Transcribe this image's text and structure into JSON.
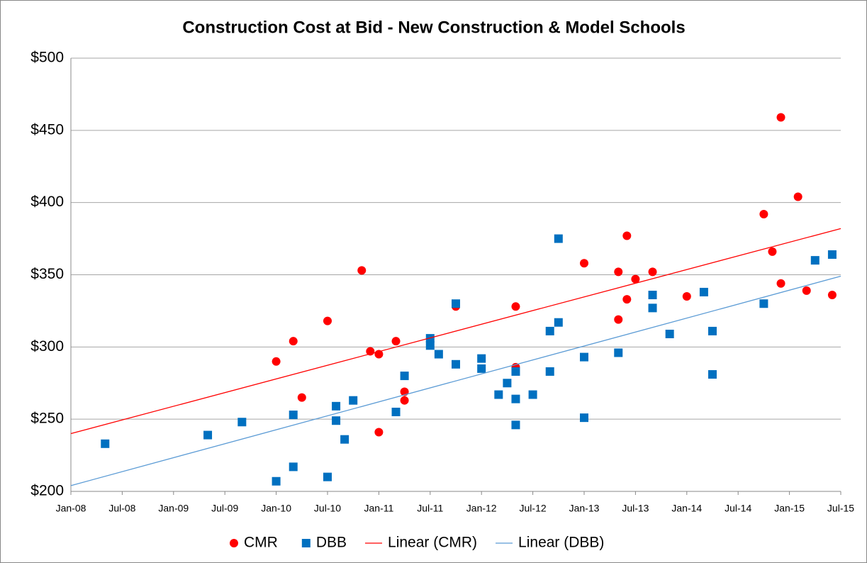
{
  "chart_data": {
    "type": "scatter",
    "title": "Construction Cost at Bid - New Construction & Model Schools",
    "xlim": [
      "2008-01",
      "2015-07"
    ],
    "xticks": [
      {
        "value": "2008-01",
        "label": "Jan-08"
      },
      {
        "value": "2008-07",
        "label": "Jul-08"
      },
      {
        "value": "2009-01",
        "label": "Jan-09"
      },
      {
        "value": "2009-07",
        "label": "Jul-09"
      },
      {
        "value": "2010-01",
        "label": "Jan-10"
      },
      {
        "value": "2010-07",
        "label": "Jul-10"
      },
      {
        "value": "2011-01",
        "label": "Jan-11"
      },
      {
        "value": "2011-07",
        "label": "Jul-11"
      },
      {
        "value": "2012-01",
        "label": "Jan-12"
      },
      {
        "value": "2012-07",
        "label": "Jul-12"
      },
      {
        "value": "2013-01",
        "label": "Jan-13"
      },
      {
        "value": "2013-07",
        "label": "Jul-13"
      },
      {
        "value": "2014-01",
        "label": "Jan-14"
      },
      {
        "value": "2014-07",
        "label": "Jul-14"
      },
      {
        "value": "2015-01",
        "label": "Jan-15"
      },
      {
        "value": "2015-07",
        "label": "Jul-15"
      }
    ],
    "ylim": [
      200,
      500
    ],
    "yticks": [
      {
        "value": 200,
        "label": "$200"
      },
      {
        "value": 250,
        "label": "$250"
      },
      {
        "value": 300,
        "label": "$300"
      },
      {
        "value": 350,
        "label": "$350"
      },
      {
        "value": 400,
        "label": "$400"
      },
      {
        "value": 450,
        "label": "$450"
      },
      {
        "value": 500,
        "label": "$500"
      }
    ],
    "grid": true,
    "legend": "bottom",
    "series": [
      {
        "name": "CMR",
        "color": "#ff0000",
        "mode": "circle",
        "x": [
          "2010-01",
          "2010-03",
          "2010-04",
          "2010-07",
          "2010-11",
          "2010-12",
          "2011-01",
          "2011-01",
          "2011-03",
          "2011-04",
          "2011-04",
          "2011-10",
          "2012-05",
          "2012-05",
          "2013-01",
          "2013-05",
          "2013-05",
          "2013-06",
          "2013-06",
          "2013-07",
          "2013-09",
          "2014-01",
          "2014-10",
          "2014-11",
          "2014-12",
          "2014-12",
          "2015-02",
          "2015-03",
          "2015-06"
        ],
        "values": [
          290,
          304,
          265,
          318,
          353,
          297,
          241,
          295,
          304,
          269,
          263,
          328,
          328,
          286,
          358,
          319,
          352,
          333,
          377,
          347,
          352,
          335,
          392,
          366,
          459,
          344,
          404,
          339,
          336
        ]
      },
      {
        "name": "DBB",
        "color": "#0070c0",
        "mode": "square",
        "x": [
          "2008-05",
          "2009-05",
          "2009-09",
          "2010-01",
          "2010-03",
          "2010-03",
          "2010-07",
          "2010-08",
          "2010-08",
          "2010-09",
          "2010-10",
          "2011-03",
          "2011-04",
          "2011-07",
          "2011-07",
          "2011-08",
          "2011-10",
          "2011-10",
          "2012-01",
          "2012-01",
          "2012-03",
          "2012-04",
          "2012-05",
          "2012-05",
          "2012-05",
          "2012-07",
          "2012-09",
          "2012-09",
          "2012-10",
          "2012-10",
          "2013-01",
          "2013-01",
          "2013-05",
          "2013-09",
          "2013-09",
          "2013-11",
          "2014-03",
          "2014-04",
          "2014-04",
          "2014-10",
          "2015-04",
          "2015-06"
        ],
        "values": [
          233,
          239,
          248,
          207,
          217,
          253,
          210,
          249,
          259,
          236,
          263,
          255,
          280,
          301,
          306,
          295,
          288,
          330,
          292,
          285,
          267,
          275,
          283,
          264,
          246,
          267,
          283,
          311,
          375,
          317,
          293,
          251,
          296,
          327,
          336,
          309,
          338,
          281,
          311,
          330,
          360,
          364
        ]
      },
      {
        "name": "Linear (CMR)",
        "color": "#ff0000",
        "mode": "line",
        "x": [
          "2008-01",
          "2015-07"
        ],
        "values": [
          240,
          382
        ]
      },
      {
        "name": "Linear (DBB)",
        "color": "#5b9bd5",
        "mode": "line",
        "x": [
          "2008-01",
          "2015-07"
        ],
        "values": [
          204,
          349
        ]
      }
    ]
  }
}
